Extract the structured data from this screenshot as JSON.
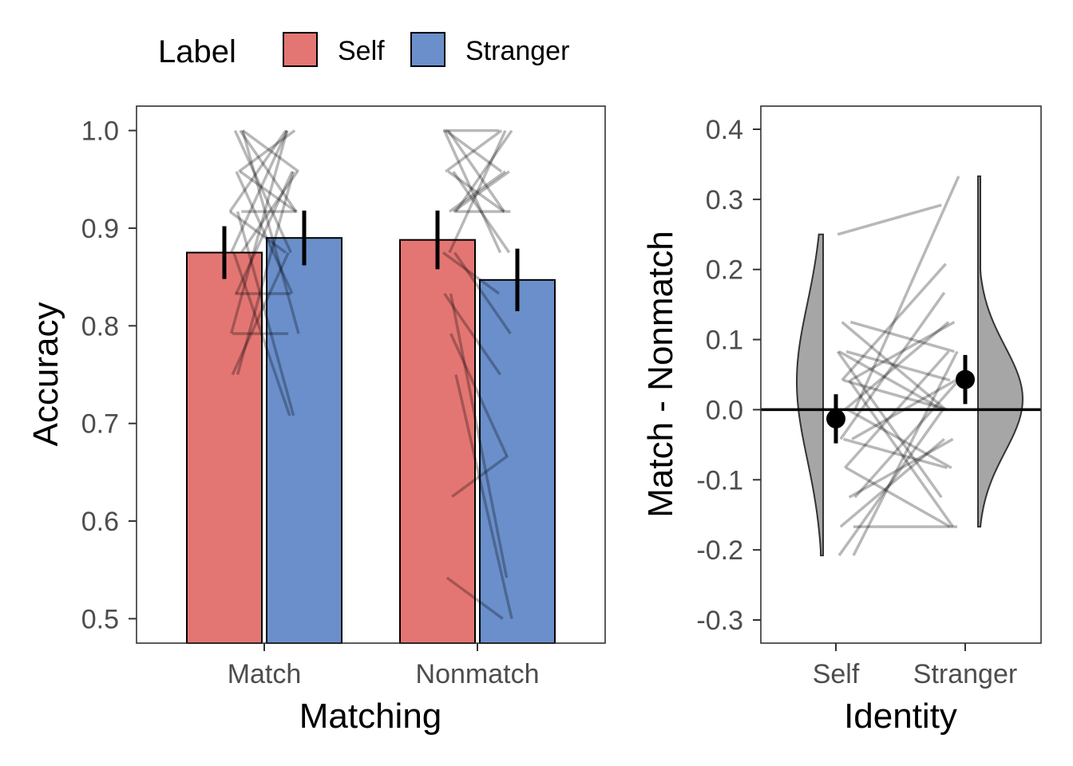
{
  "legend": {
    "title": "Label",
    "items": [
      {
        "label": "Self",
        "color": "#E37673"
      },
      {
        "label": "Stranger",
        "color": "#6A8FCB"
      }
    ]
  },
  "chart_data": [
    {
      "type": "bar",
      "xlabel": "Matching",
      "ylabel": "Accuracy",
      "ylim": [
        0.475,
        1.025
      ],
      "yticks": [
        "0.5",
        "0.6",
        "0.7",
        "0.8",
        "0.9",
        "1.0"
      ],
      "categories": [
        "Match",
        "Nonmatch"
      ],
      "series": [
        {
          "name": "Self",
          "values": [
            0.875,
            0.888
          ],
          "ci": [
            [
              0.848,
              0.902
            ],
            [
              0.858,
              0.918
            ]
          ]
        },
        {
          "name": "Stranger",
          "values": [
            0.89,
            0.847
          ],
          "ci": [
            [
              0.862,
              0.918
            ],
            [
              0.815,
              0.879
            ]
          ]
        }
      ],
      "individual_lines": {
        "Match": [
          [
            0.917,
            1.0
          ],
          [
            1.0,
            0.875
          ],
          [
            0.958,
            0.917
          ],
          [
            0.875,
            1.0
          ],
          [
            0.833,
            0.958
          ],
          [
            0.917,
            0.917
          ],
          [
            0.792,
            0.792
          ],
          [
            0.75,
            0.958
          ],
          [
            1.0,
            0.792
          ],
          [
            0.875,
            0.708
          ],
          [
            0.958,
            1.0
          ],
          [
            0.917,
            0.875
          ],
          [
            0.833,
            0.833
          ],
          [
            1.0,
            0.917
          ],
          [
            0.792,
            1.0
          ],
          [
            0.958,
            0.833
          ],
          [
            0.875,
            0.958
          ],
          [
            0.75,
            0.875
          ],
          [
            0.917,
            0.708
          ],
          [
            1.0,
            0.958
          ]
        ],
        "Nonmatch": [
          [
            1.0,
            1.0
          ],
          [
            0.958,
            0.917
          ],
          [
            0.917,
            0.958
          ],
          [
            1.0,
            0.875
          ],
          [
            0.875,
            1.0
          ],
          [
            0.917,
            0.917
          ],
          [
            0.958,
            1.0
          ],
          [
            0.792,
            0.667
          ],
          [
            0.75,
            0.5
          ],
          [
            0.542,
            0.5
          ],
          [
            0.625,
            0.667
          ],
          [
            0.875,
            0.833
          ],
          [
            1.0,
            0.917
          ],
          [
            0.958,
            0.875
          ],
          [
            0.833,
            0.75
          ],
          [
            0.917,
            0.958
          ],
          [
            0.875,
            0.792
          ],
          [
            1.0,
            0.958
          ],
          [
            0.833,
            0.542
          ],
          [
            0.917,
            1.0
          ]
        ]
      }
    },
    {
      "type": "scatter",
      "xlabel": "Identity",
      "ylabel": "Match - Nonmatch",
      "ylim": [
        -0.333,
        0.433
      ],
      "yticks": [
        "-0.3",
        "-0.2",
        "-0.1",
        "0.0",
        "0.1",
        "0.2",
        "0.3",
        "0.4"
      ],
      "categories": [
        "Self",
        "Stranger"
      ],
      "reference_line": 0,
      "points": [
        {
          "category": "Self",
          "mean": -0.013,
          "ci": [
            -0.048,
            0.022
          ]
        },
        {
          "category": "Stranger",
          "mean": 0.043,
          "ci": [
            0.008,
            0.078
          ]
        }
      ],
      "individual_lines": [
        [
          0.25,
          0.292
        ],
        [
          0.125,
          0.0
        ],
        [
          0.083,
          0.042
        ],
        [
          0.042,
          0.125
        ],
        [
          0.0,
          0.333
        ],
        [
          -0.042,
          0.167
        ],
        [
          -0.083,
          0.083
        ],
        [
          -0.125,
          -0.042
        ],
        [
          -0.167,
          -0.167
        ],
        [
          -0.208,
          0.0
        ],
        [
          0.042,
          0.0
        ],
        [
          0.0,
          -0.083
        ],
        [
          -0.042,
          0.042
        ],
        [
          0.083,
          -0.125
        ],
        [
          0.042,
          0.208
        ],
        [
          -0.083,
          -0.167
        ],
        [
          0.125,
          0.083
        ],
        [
          -0.125,
          0.042
        ],
        [
          -0.167,
          -0.042
        ],
        [
          0.0,
          0.125
        ],
        [
          0.042,
          -0.167
        ],
        [
          -0.208,
          0.083
        ],
        [
          0.083,
          0.0
        ],
        [
          -0.042,
          -0.083
        ]
      ],
      "distributions": {
        "Self": {
          "range": [
            -0.208,
            0.25
          ],
          "color": "#A6A6A6"
        },
        "Stranger": {
          "range": [
            -0.167,
            0.333
          ],
          "color": "#A6A6A6"
        }
      }
    }
  ]
}
